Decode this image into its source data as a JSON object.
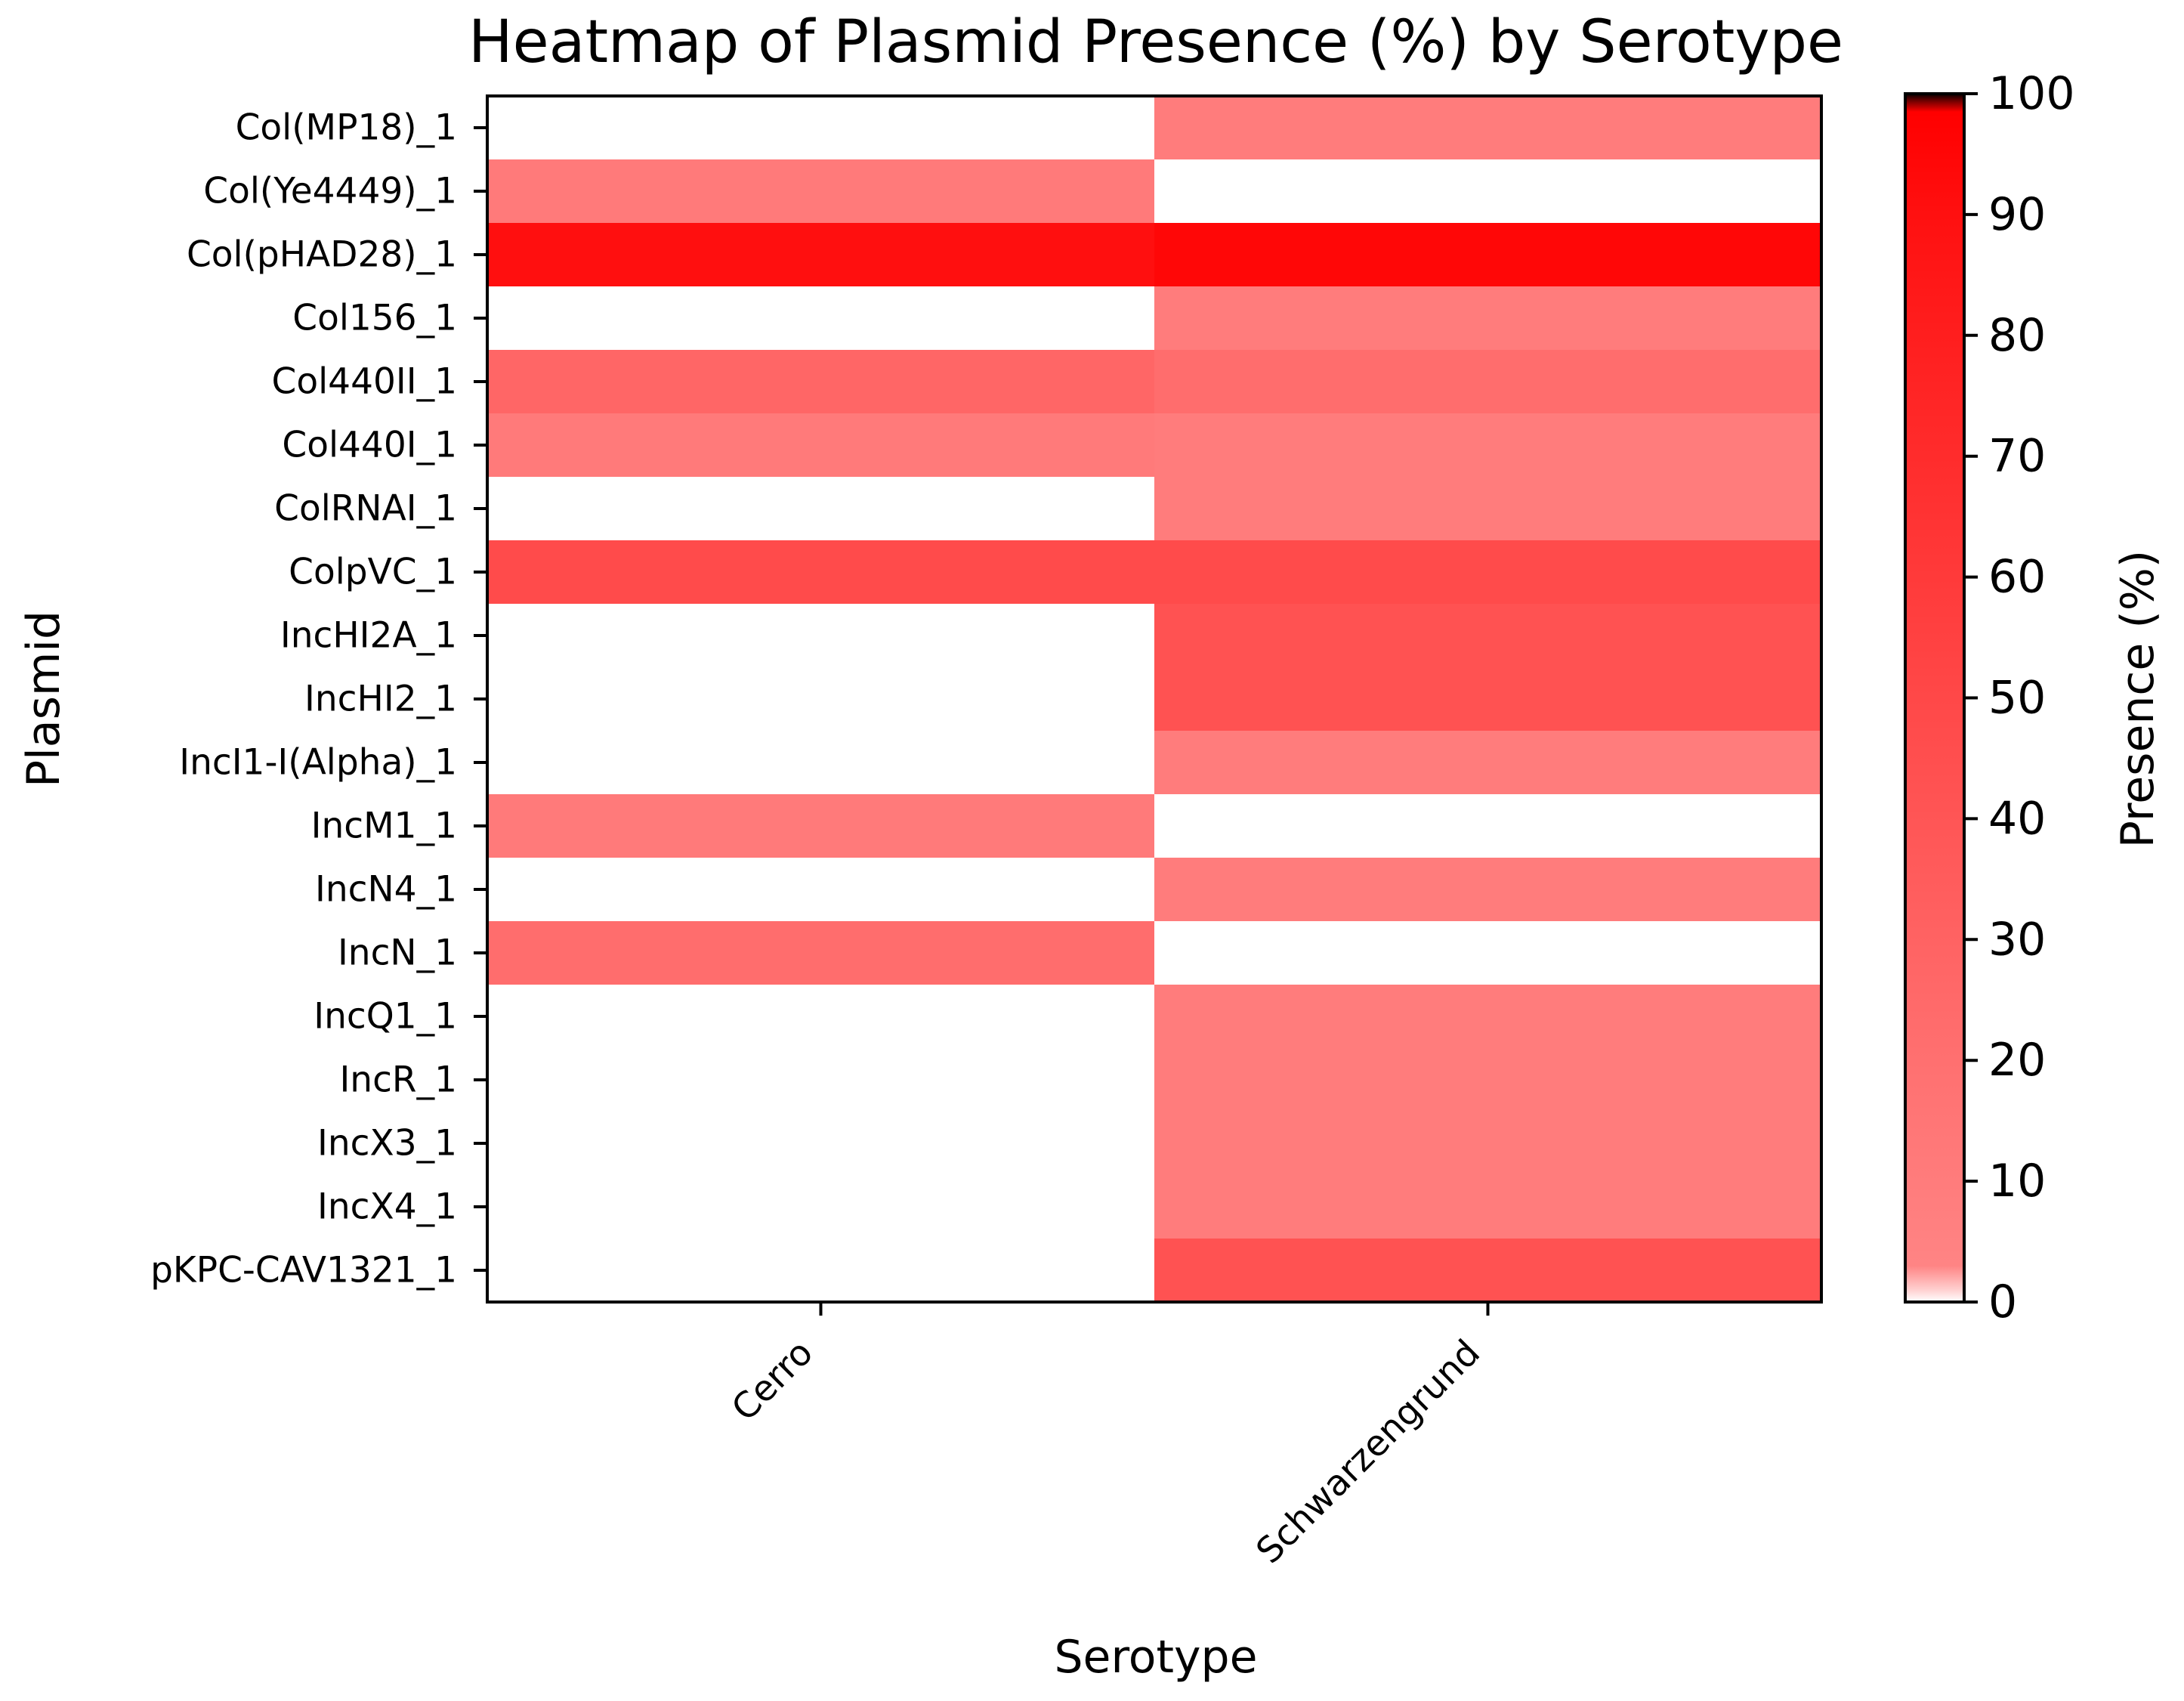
{
  "chart_data": {
    "type": "heatmap",
    "title": "Heatmap of Plasmid Presence (%) by Serotype",
    "xlabel": "Serotype",
    "ylabel": "Plasmid",
    "x_categories": [
      "Cerro",
      "Schwarzengrund"
    ],
    "y_categories": [
      "Col(MP18)_1",
      "Col(Ye4449)_1",
      "Col(pHAD28)_1",
      "Col156_1",
      "Col440II_1",
      "Col440I_1",
      "ColRNAI_1",
      "ColpVC_1",
      "IncHI2A_1",
      "IncHI2_1",
      "IncI1-I(Alpha)_1",
      "IncM1_1",
      "IncN4_1",
      "IncN_1",
      "IncQ1_1",
      "IncR_1",
      "IncX3_1",
      "IncX4_1",
      "pKPC-CAV1321_1"
    ],
    "values": [
      [
        0,
        9
      ],
      [
        10,
        0
      ],
      [
        89,
        95
      ],
      [
        0,
        9
      ],
      [
        25,
        20
      ],
      [
        10,
        9
      ],
      [
        0,
        9
      ],
      [
        45,
        45
      ],
      [
        0,
        40
      ],
      [
        0,
        40
      ],
      [
        0,
        9
      ],
      [
        10,
        0
      ],
      [
        0,
        9
      ],
      [
        20,
        0
      ],
      [
        0,
        9
      ],
      [
        0,
        9
      ],
      [
        0,
        9
      ],
      [
        0,
        9
      ],
      [
        0,
        40
      ]
    ],
    "colorbar": {
      "label": "Presence (%)",
      "range": [
        0,
        100
      ],
      "ticks": [
        0,
        10,
        20,
        30,
        40,
        50,
        60,
        70,
        80,
        90,
        100
      ],
      "colors": {
        "low": "#ffffff",
        "mid_low": "#ff8080",
        "high": "#ff0000",
        "max": "#000000"
      }
    }
  }
}
